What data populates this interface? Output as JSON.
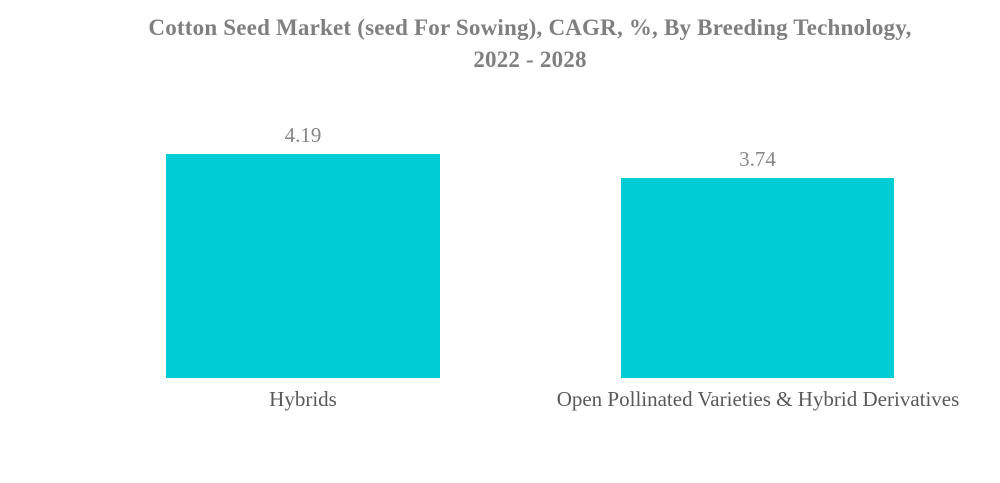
{
  "title": {
    "line1": "Cotton Seed Market (seed For Sowing), CAGR, %, By Breeding Technology,",
    "line2": "2022 - 2028"
  },
  "chart_data": {
    "type": "bar",
    "title": "Cotton Seed Market (seed For Sowing), CAGR, %, By Breeding Technology, 2022 - 2028",
    "categories": [
      "Hybrids",
      "Open Pollinated Varieties & Hybrid Derivatives"
    ],
    "values": [
      4.19,
      3.74
    ],
    "value_labels": [
      "4.19",
      "3.74"
    ],
    "unit": "%",
    "orientation": "vertical",
    "ylim": [
      0,
      4.5
    ],
    "grid": false,
    "legend": false,
    "axes_visible": false,
    "bar_color": "#00CDD3",
    "value_label_color": "#868686",
    "category_label_color": "#595959",
    "title_color": "#7F7F7F",
    "background_color": "#FFFFFF"
  }
}
